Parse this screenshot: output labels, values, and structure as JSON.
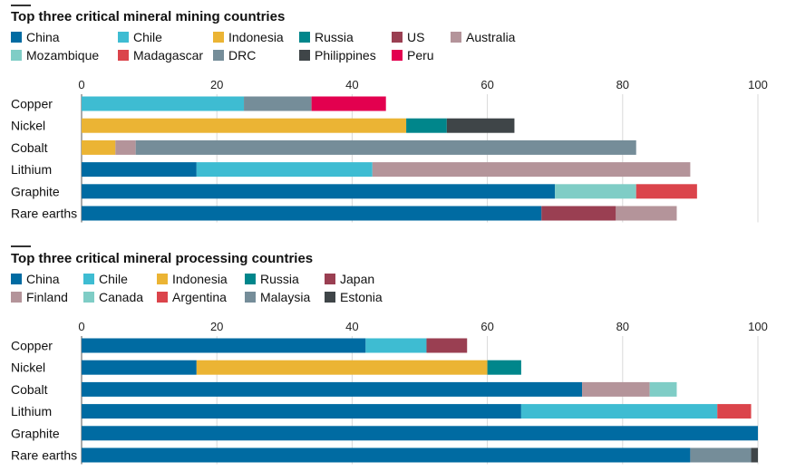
{
  "chart_data": [
    {
      "type": "bar",
      "orientation": "horizontal",
      "stacked": true,
      "title": "Top three critical mineral mining countries",
      "xlim": [
        0,
        100
      ],
      "xticks": [
        "0",
        "20",
        "40",
        "60",
        "80",
        "100"
      ],
      "grid": true,
      "legend_position": "top",
      "categories": [
        "Copper",
        "Nickel",
        "Cobalt",
        "Lithium",
        "Graphite",
        "Rare earths"
      ],
      "legend": [
        {
          "name": "China",
          "color": "#006ba2"
        },
        {
          "name": "Chile",
          "color": "#3ebcd2"
        },
        {
          "name": "Indonesia",
          "color": "#ebb434"
        },
        {
          "name": "Russia",
          "color": "#00868b"
        },
        {
          "name": "US",
          "color": "#9a3f52"
        },
        {
          "name": "Australia",
          "color": "#b4949a"
        },
        {
          "name": "Mozambique",
          "color": "#7fcdc6"
        },
        {
          "name": "Madagascar",
          "color": "#db444b"
        },
        {
          "name": "DRC",
          "color": "#758d99"
        },
        {
          "name": "Philippines",
          "color": "#3f4548"
        },
        {
          "name": "Peru",
          "color": "#e3004f"
        }
      ],
      "bars": [
        {
          "category": "Copper",
          "segments": [
            {
              "name": "Chile",
              "value": 24
            },
            {
              "name": "DRC",
              "value": 10
            },
            {
              "name": "Peru",
              "value": 11
            }
          ]
        },
        {
          "category": "Nickel",
          "segments": [
            {
              "name": "Indonesia",
              "value": 48
            },
            {
              "name": "Russia",
              "value": 6
            },
            {
              "name": "Philippines",
              "value": 10
            }
          ]
        },
        {
          "category": "Cobalt",
          "segments": [
            {
              "name": "Indonesia",
              "value": 5
            },
            {
              "name": "Australia",
              "value": 3
            },
            {
              "name": "DRC",
              "value": 74
            }
          ]
        },
        {
          "category": "Lithium",
          "segments": [
            {
              "name": "China",
              "value": 17
            },
            {
              "name": "Chile",
              "value": 26
            },
            {
              "name": "Australia",
              "value": 47
            }
          ]
        },
        {
          "category": "Graphite",
          "segments": [
            {
              "name": "China",
              "value": 70
            },
            {
              "name": "Mozambique",
              "value": 12
            },
            {
              "name": "Madagascar",
              "value": 9
            }
          ]
        },
        {
          "category": "Rare earths",
          "segments": [
            {
              "name": "China",
              "value": 68
            },
            {
              "name": "US",
              "value": 11
            },
            {
              "name": "Australia",
              "value": 9
            }
          ]
        }
      ]
    },
    {
      "type": "bar",
      "orientation": "horizontal",
      "stacked": true,
      "title": "Top three critical mineral processing countries",
      "xlim": [
        0,
        100
      ],
      "xticks": [
        "0",
        "20",
        "40",
        "60",
        "80",
        "100"
      ],
      "grid": true,
      "legend_position": "top",
      "categories": [
        "Copper",
        "Nickel",
        "Cobalt",
        "Lithium",
        "Graphite",
        "Rare earths"
      ],
      "legend": [
        {
          "name": "China",
          "color": "#006ba2"
        },
        {
          "name": "Chile",
          "color": "#3ebcd2"
        },
        {
          "name": "Indonesia",
          "color": "#ebb434"
        },
        {
          "name": "Russia",
          "color": "#00868b"
        },
        {
          "name": "Japan",
          "color": "#9a3f52"
        },
        {
          "name": "Finland",
          "color": "#b4949a"
        },
        {
          "name": "Canada",
          "color": "#7fcdc6"
        },
        {
          "name": "Argentina",
          "color": "#db444b"
        },
        {
          "name": "Malaysia",
          "color": "#758d99"
        },
        {
          "name": "Estonia",
          "color": "#3f4548"
        }
      ],
      "bars": [
        {
          "category": "Copper",
          "segments": [
            {
              "name": "China",
              "value": 42
            },
            {
              "name": "Chile",
              "value": 9
            },
            {
              "name": "Japan",
              "value": 6
            }
          ]
        },
        {
          "category": "Nickel",
          "segments": [
            {
              "name": "China",
              "value": 17
            },
            {
              "name": "Indonesia",
              "value": 43
            },
            {
              "name": "Russia",
              "value": 5
            }
          ]
        },
        {
          "category": "Cobalt",
          "segments": [
            {
              "name": "China",
              "value": 74
            },
            {
              "name": "Finland",
              "value": 10
            },
            {
              "name": "Canada",
              "value": 4
            }
          ]
        },
        {
          "category": "Lithium",
          "segments": [
            {
              "name": "China",
              "value": 65
            },
            {
              "name": "Chile",
              "value": 29
            },
            {
              "name": "Argentina",
              "value": 5
            }
          ]
        },
        {
          "category": "Graphite",
          "segments": [
            {
              "name": "China",
              "value": 100
            }
          ]
        },
        {
          "category": "Rare earths",
          "segments": [
            {
              "name": "China",
              "value": 90
            },
            {
              "name": "Malaysia",
              "value": 9
            },
            {
              "name": "Estonia",
              "value": 1
            }
          ]
        }
      ]
    }
  ]
}
